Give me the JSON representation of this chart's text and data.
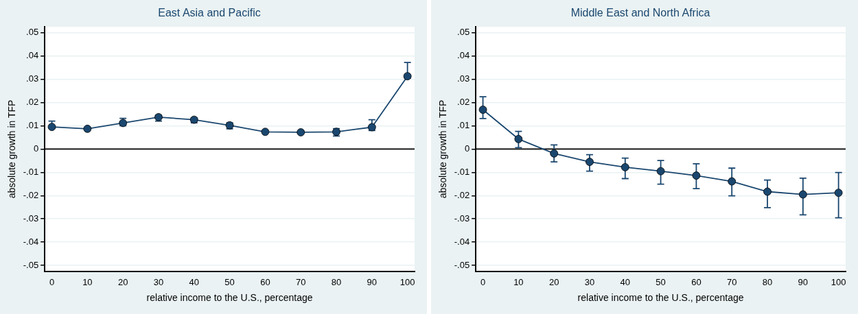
{
  "chart_data": [
    {
      "type": "line",
      "title": "East Asia and Pacific",
      "xlabel": "relative income to the U.S., percentage",
      "ylabel": "absolute growth in TFP",
      "x": [
        0,
        10,
        20,
        30,
        40,
        50,
        60,
        70,
        80,
        90,
        100
      ],
      "series": [
        {
          "color": "#1a476f",
          "values": [
            0.0095,
            0.0087,
            0.0112,
            0.0137,
            0.0126,
            0.0102,
            0.0074,
            0.0072,
            0.0074,
            0.0094,
            0.0313
          ],
          "errors": [
            [
              0.0089,
              0.012
            ],
            null,
            [
              0.01,
              0.0132
            ],
            [
              0.012,
              0.0146
            ],
            [
              0.0113,
              0.0134
            ],
            [
              0.0087,
              0.0113
            ],
            null,
            null,
            [
              0.0056,
              0.0088
            ],
            [
              0.008,
              0.0126
            ],
            [
              0.0304,
              0.0372
            ]
          ]
        }
      ],
      "xlim": [
        -2,
        102
      ],
      "xticks": [
        0,
        10,
        20,
        30,
        40,
        50,
        60,
        70,
        80,
        90,
        100
      ],
      "ylim": [
        -0.0525,
        0.0525
      ],
      "yticks": [
        {
          "value": -0.05,
          "label": "-.05"
        },
        {
          "value": -0.04,
          "label": "-.04"
        },
        {
          "value": -0.03,
          "label": "-.03"
        },
        {
          "value": -0.02,
          "label": "-.02"
        },
        {
          "value": -0.01,
          "label": "-.01"
        },
        {
          "value": 0,
          "label": "0"
        },
        {
          "value": 0.01,
          "label": ".01"
        },
        {
          "value": 0.02,
          "label": ".02"
        },
        {
          "value": 0.03,
          "label": ".03"
        },
        {
          "value": 0.04,
          "label": ".04"
        },
        {
          "value": 0.05,
          "label": ".05"
        }
      ],
      "ref_lines": [
        {
          "axis": "y",
          "value": 0,
          "color": "#000000"
        }
      ],
      "grid": "y",
      "legend": false,
      "marker": "circle",
      "line_style": "solid"
    },
    {
      "type": "line",
      "title": "Middle East and North Africa",
      "xlabel": "relative income to the U.S., percentage",
      "ylabel": "absolute growth in TFP",
      "x": [
        0,
        10,
        20,
        30,
        40,
        50,
        60,
        70,
        80,
        90,
        100
      ],
      "series": [
        {
          "color": "#1a476f",
          "values": [
            0.0169,
            0.0043,
            -0.0019,
            -0.0055,
            -0.0078,
            -0.0095,
            -0.0114,
            -0.0139,
            -0.0183,
            -0.0195,
            -0.0188
          ],
          "errors": [
            [
              0.0131,
              0.0225
            ],
            [
              0.0006,
              0.0076
            ],
            [
              -0.0055,
              0.0018
            ],
            [
              -0.0095,
              -0.0024
            ],
            [
              -0.0127,
              -0.0039
            ],
            [
              -0.0151,
              -0.0049
            ],
            [
              -0.017,
              -0.0063
            ],
            [
              -0.0201,
              -0.0082
            ],
            [
              -0.0252,
              -0.0133
            ],
            [
              -0.0283,
              -0.0125
            ],
            [
              -0.0295,
              -0.0101
            ]
          ]
        }
      ],
      "xlim": [
        -2,
        102
      ],
      "xticks": [
        0,
        10,
        20,
        30,
        40,
        50,
        60,
        70,
        80,
        90,
        100
      ],
      "ylim": [
        -0.0525,
        0.0525
      ],
      "yticks": [
        {
          "value": -0.05,
          "label": "-.05"
        },
        {
          "value": -0.04,
          "label": "-.04"
        },
        {
          "value": -0.03,
          "label": "-.03"
        },
        {
          "value": -0.02,
          "label": "-.02"
        },
        {
          "value": -0.01,
          "label": "-.01"
        },
        {
          "value": 0,
          "label": "0"
        },
        {
          "value": 0.01,
          "label": ".01"
        },
        {
          "value": 0.02,
          "label": ".02"
        },
        {
          "value": 0.03,
          "label": ".03"
        },
        {
          "value": 0.04,
          "label": ".04"
        },
        {
          "value": 0.05,
          "label": ".05"
        }
      ],
      "ref_lines": [
        {
          "axis": "y",
          "value": 0,
          "color": "#000000"
        }
      ],
      "grid": "y",
      "legend": false,
      "marker": "circle",
      "line_style": "solid"
    }
  ]
}
